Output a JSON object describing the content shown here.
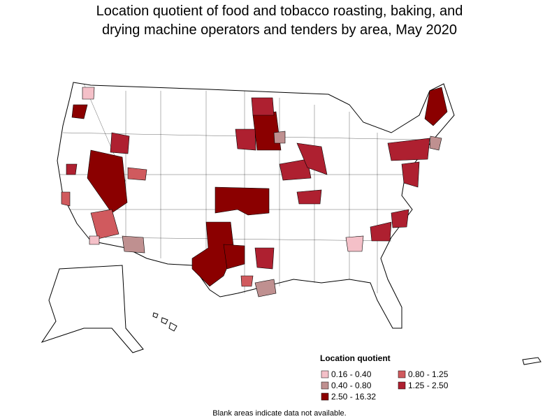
{
  "title_lines": [
    "Location quotient of food and tobacco roasting, baking, and",
    "drying machine operators and tenders by area, May 2020"
  ],
  "legend": {
    "title": "Location quotient",
    "items": [
      {
        "label": "0.16 - 0.40",
        "color": "#f4c0c8"
      },
      {
        "label": "0.40 - 0.80",
        "color": "#bf9090"
      },
      {
        "label": "0.80 - 1.25",
        "color": "#d05a5e"
      },
      {
        "label": "1.25 - 2.50",
        "color": "#ae2030"
      },
      {
        "label": "2.50 - 16.32",
        "color": "#8b0000"
      }
    ]
  },
  "footnote": "Blank areas indicate data not available."
}
